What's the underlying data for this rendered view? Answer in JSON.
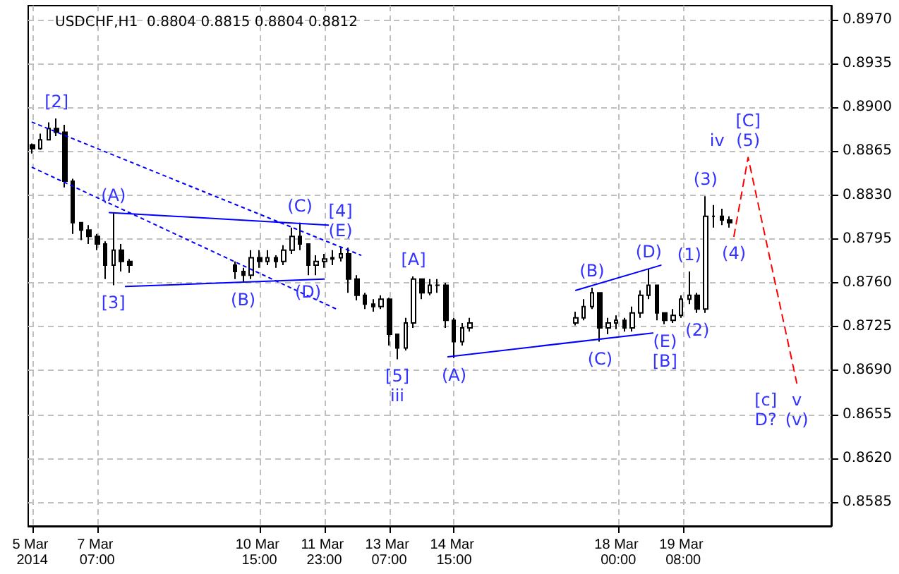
{
  "chart_data": {
    "type": "candlestick",
    "title": "USDCHF,H1  0.8804 0.8815 0.8804 0.8812",
    "color": "#000000",
    "grid": true,
    "x": [
      "2014-03-05T23:00",
      "2014-03-06T03:00",
      "2014-03-06T07:00",
      "2014-03-06T11:00",
      "2014-03-06T15:00",
      "2014-03-06T19:00",
      "2014-03-06T23:00",
      "2014-03-07T03:00",
      "2014-03-07T07:00",
      "2014-03-07T11:00",
      "2014-03-07T15:00",
      "2014-03-07T19:00",
      "2014-03-07T23:00",
      "2014-03-10T03:00",
      "2014-03-10T07:00",
      "2014-03-10T11:00",
      "2014-03-10T15:00",
      "2014-03-10T19:00",
      "2014-03-10T23:00",
      "2014-03-11T03:00",
      "2014-03-11T07:00",
      "2014-03-11T11:00",
      "2014-03-11T15:00",
      "2014-03-11T19:00",
      "2014-03-11T23:00",
      "2014-03-12T03:00",
      "2014-03-12T07:00",
      "2014-03-12T11:00",
      "2014-03-12T15:00",
      "2014-03-12T19:00",
      "2014-03-12T23:00",
      "2014-03-13T03:00",
      "2014-03-13T07:00",
      "2014-03-13T11:00",
      "2014-03-13T15:00",
      "2014-03-13T19:00",
      "2014-03-13T23:00",
      "2014-03-14T03:00",
      "2014-03-14T07:00",
      "2014-03-14T11:00",
      "2014-03-14T15:00",
      "2014-03-14T19:00",
      "2014-03-14T23:00",
      "2014-03-17T03:00",
      "2014-03-17T07:00",
      "2014-03-17T11:00",
      "2014-03-17T15:00",
      "2014-03-17T19:00",
      "2014-03-17T23:00",
      "2014-03-18T03:00",
      "2014-03-18T07:00",
      "2014-03-18T11:00",
      "2014-03-18T15:00",
      "2014-03-18T19:00",
      "2014-03-18T23:00",
      "2014-03-19T03:00",
      "2014-03-19T07:00",
      "2014-03-19T11:00",
      "2014-03-19T15:00",
      "2014-03-19T19:00",
      "2014-03-19T23:00",
      "2014-03-20T03:00",
      "2014-03-20T07:00"
    ],
    "ohlc": [
      [
        0.887,
        0.8871,
        0.8863,
        0.8867
      ],
      [
        0.8867,
        0.8879,
        0.8866,
        0.8874
      ],
      [
        0.8874,
        0.8888,
        0.8874,
        0.8883
      ],
      [
        0.8883,
        0.8891,
        0.8877,
        0.888
      ],
      [
        0.888,
        0.8886,
        0.8836,
        0.8841
      ],
      [
        0.8841,
        0.8843,
        0.8799,
        0.8808
      ],
      [
        0.8808,
        0.8808,
        0.8794,
        0.8802
      ],
      [
        0.8802,
        0.8806,
        0.8791,
        0.8797
      ],
      [
        0.8797,
        0.8799,
        0.8786,
        0.8791
      ],
      [
        0.8791,
        0.8793,
        0.8763,
        0.8774
      ],
      [
        0.8774,
        0.8816,
        0.8758,
        0.8786
      ],
      [
        0.8786,
        0.8791,
        0.8769,
        0.8777
      ],
      [
        0.8777,
        0.8779,
        0.8768,
        0.8774
      ],
      [
        0.8774,
        0.8777,
        0.8763,
        0.8769
      ],
      [
        0.8769,
        0.8772,
        0.876,
        0.8766
      ],
      [
        0.8766,
        0.8786,
        0.8763,
        0.878
      ],
      [
        0.878,
        0.8786,
        0.8772,
        0.8777
      ],
      [
        0.8777,
        0.8786,
        0.8774,
        0.878
      ],
      [
        0.878,
        0.8782,
        0.8772,
        0.8777
      ],
      [
        0.8777,
        0.879,
        0.8774,
        0.8786
      ],
      [
        0.8786,
        0.8804,
        0.8783,
        0.8797
      ],
      [
        0.8797,
        0.8808,
        0.8786,
        0.8791
      ],
      [
        0.8791,
        0.8791,
        0.8766,
        0.8774
      ],
      [
        0.8774,
        0.8782,
        0.8766,
        0.8777
      ],
      [
        0.8777,
        0.8783,
        0.8772,
        0.8779
      ],
      [
        0.8779,
        0.8786,
        0.8774,
        0.878
      ],
      [
        0.878,
        0.8788,
        0.8777,
        0.8783
      ],
      [
        0.8783,
        0.8788,
        0.8752,
        0.8763
      ],
      [
        0.8763,
        0.8766,
        0.8746,
        0.875
      ],
      [
        0.875,
        0.8752,
        0.8739,
        0.8743
      ],
      [
        0.8743,
        0.8747,
        0.8737,
        0.8741
      ],
      [
        0.8741,
        0.875,
        0.8739,
        0.8747
      ],
      [
        0.8747,
        0.8748,
        0.871,
        0.8719
      ],
      [
        0.8719,
        0.8719,
        0.8699,
        0.8708
      ],
      [
        0.8708,
        0.8732,
        0.8706,
        0.8728
      ],
      [
        0.8728,
        0.8765,
        0.8724,
        0.8763
      ],
      [
        0.8763,
        0.8763,
        0.8747,
        0.8752
      ],
      [
        0.8752,
        0.8763,
        0.875,
        0.8758
      ],
      [
        0.8758,
        0.8763,
        0.8752,
        0.8758
      ],
      [
        0.8758,
        0.876,
        0.8724,
        0.873
      ],
      [
        0.873,
        0.8732,
        0.87,
        0.8713
      ],
      [
        0.8713,
        0.8728,
        0.871,
        0.8724
      ],
      [
        0.8724,
        0.8732,
        0.8721,
        0.8728
      ],
      [
        0.8728,
        0.8737,
        0.8726,
        0.8732
      ],
      [
        0.8732,
        0.8747,
        0.873,
        0.8741
      ],
      [
        0.8741,
        0.8756,
        0.8739,
        0.8752
      ],
      [
        0.8752,
        0.8752,
        0.8713,
        0.8724
      ],
      [
        0.8724,
        0.8732,
        0.8719,
        0.8728
      ],
      [
        0.8728,
        0.8734,
        0.8723,
        0.873
      ],
      [
        0.873,
        0.8732,
        0.8721,
        0.8724
      ],
      [
        0.8724,
        0.8741,
        0.8721,
        0.8736
      ],
      [
        0.8736,
        0.8754,
        0.8732,
        0.875
      ],
      [
        0.875,
        0.8771,
        0.8747,
        0.8758
      ],
      [
        0.8758,
        0.8758,
        0.873,
        0.8736
      ],
      [
        0.8736,
        0.8736,
        0.8727,
        0.873
      ],
      [
        0.873,
        0.8739,
        0.8728,
        0.8734
      ],
      [
        0.8734,
        0.875,
        0.8732,
        0.8747
      ],
      [
        0.8747,
        0.8769,
        0.8743,
        0.875
      ],
      [
        0.875,
        0.8752,
        0.8736,
        0.8739
      ],
      [
        0.8739,
        0.8829,
        0.8736,
        0.8813
      ],
      [
        0.8813,
        0.8822,
        0.8804,
        0.8813
      ],
      [
        0.8813,
        0.8819,
        0.8806,
        0.881
      ],
      [
        0.881,
        0.8813,
        0.8804,
        0.8808
      ]
    ],
    "xlim": [
      "2014-03-05T21:00",
      "2014-03-22T09:00"
    ],
    "xticks": [
      {
        "value": "2014-03-05T23:00",
        "label": "5 Mar 2014"
      },
      {
        "value": "2014-03-07T07:00",
        "label": "7 Mar 07:00"
      },
      {
        "value": "2014-03-10T15:00",
        "label": "10 Mar 15:00"
      },
      {
        "value": "2014-03-11T23:00",
        "label": "11 Mar 23:00"
      },
      {
        "value": "2014-03-13T07:00",
        "label": "13 Mar 07:00"
      },
      {
        "value": "2014-03-14T15:00",
        "label": "14 Mar 15:00"
      },
      {
        "value": "2014-03-18T00:00",
        "label": "18 Mar 00:00"
      },
      {
        "value": "2014-03-19T08:00",
        "label": "19 Mar 08:00"
      }
    ],
    "ylim": [
      0.8566,
      0.8981
    ],
    "yticks": [
      0.8585,
      {
        "value": 0.862,
        "label": "0.8620"
      },
      0.8655,
      {
        "value": 0.869,
        "label": "0.8690"
      },
      0.8725,
      {
        "value": 0.876,
        "label": "0.8760"
      },
      0.8795,
      {
        "value": 0.883,
        "label": "0.8830"
      },
      0.8865,
      {
        "value": 0.89,
        "label": "0.8900"
      },
      0.8935,
      {
        "value": 0.897,
        "label": "0.8970"
      }
    ],
    "series": [
      {
        "type": "line",
        "color": "#0000ff",
        "line_style": "dotted",
        "marker": "none",
        "x": [
          "2014-03-05T23:00",
          "2014-03-12T17:00"
        ],
        "values": [
          0.8888,
          0.8782
        ]
      },
      {
        "type": "line",
        "color": "#0000ff",
        "line_style": "dotted",
        "marker": "none",
        "x": [
          "2014-03-05T23:00",
          "2014-03-12T05:00"
        ],
        "values": [
          0.8852,
          0.8739
        ]
      },
      {
        "type": "line",
        "color": "#0000ff",
        "line_style": "solid",
        "marker": "none",
        "x": [
          "2014-03-07T13:00",
          "2014-03-12T01:00"
        ],
        "values": [
          0.8816,
          0.8806
        ]
      },
      {
        "type": "line",
        "color": "#0000ff",
        "line_style": "solid",
        "marker": "none",
        "x": [
          "2014-03-07T21:00",
          "2014-03-11T23:00"
        ],
        "values": [
          0.8757,
          0.8763
        ]
      },
      {
        "type": "line",
        "color": "#0000ff",
        "line_style": "solid",
        "marker": "none",
        "x": [
          "2014-03-17T03:00",
          "2014-03-18T21:00"
        ],
        "values": [
          0.8754,
          0.8774
        ]
      },
      {
        "type": "line",
        "color": "#0000ff",
        "line_style": "solid",
        "marker": "none",
        "x": [
          "2014-03-14T12:00",
          "2014-03-18T17:00"
        ],
        "values": [
          0.8701,
          0.872
        ]
      },
      {
        "type": "line",
        "color": "#ff0000",
        "line_style": "dashed",
        "marker": "none",
        "x": [
          "2014-03-20T09:00",
          "2014-03-20T16:00",
          "2014-03-21T16:00"
        ],
        "values": [
          0.8797,
          0.886,
          0.868
        ]
      }
    ],
    "annotations": [
      {
        "text": "[2]",
        "x": "2014-03-06T11:00",
        "y": 0.8891
      },
      {
        "text": "(A)",
        "x": "2014-03-07T15:00",
        "y": 0.8816
      },
      {
        "text": "[3]",
        "x": "2014-03-07T15:00",
        "y": 0.8758
      },
      {
        "text": "(B)",
        "x": "2014-03-10T07:00",
        "y": 0.876
      },
      {
        "text": "(C)",
        "x": "2014-03-11T11:00",
        "y": 0.8808
      },
      {
        "text": "(D)",
        "x": "2014-03-11T15:00",
        "y": 0.8766
      },
      {
        "text": "(E)",
        "x": "2014-03-12T07:00",
        "y": 0.8788
      },
      {
        "text": "[4]",
        "x": "2014-03-12T07:00",
        "y": 0.8788
      },
      {
        "text": "[5]",
        "x": "2014-03-13T11:00",
        "y": 0.8699
      },
      {
        "text": "iii",
        "x": "2014-03-13T11:00",
        "y": 0.8699
      },
      {
        "text": "[A]",
        "x": "2014-03-13T19:00",
        "y": 0.8765
      },
      {
        "text": "(A)",
        "x": "2014-03-14T15:00",
        "y": 0.87
      },
      {
        "text": "(B)",
        "x": "2014-03-17T11:00",
        "y": 0.8756
      },
      {
        "text": "(C)",
        "x": "2014-03-17T15:00",
        "y": 0.8713
      },
      {
        "text": "(D)",
        "x": "2014-03-18T15:00",
        "y": 0.8771
      },
      {
        "text": "(E)",
        "x": "2014-03-18T23:00",
        "y": 0.8727
      },
      {
        "text": "[B]",
        "x": "2014-03-18T23:00",
        "y": 0.8727
      },
      {
        "text": "(1)",
        "x": "2014-03-19T11:00",
        "y": 0.8769
      },
      {
        "text": "(2)",
        "x": "2014-03-19T15:00",
        "y": 0.8736
      },
      {
        "text": "(3)",
        "x": "2014-03-19T19:00",
        "y": 0.8829
      },
      {
        "text": "(4)",
        "x": "2014-03-20T09:00",
        "y": 0.8797
      },
      {
        "text": "(5)",
        "x": "2014-03-20T16:00",
        "y": 0.886
      },
      {
        "text": "[C]",
        "x": "2014-03-20T16:00",
        "y": 0.886
      },
      {
        "text": "iv",
        "x": "2014-03-20T16:00",
        "y": 0.886
      },
      {
        "text": "v",
        "x": "2014-03-21T16:00",
        "y": 0.868
      },
      {
        "text": "(v)",
        "x": "2014-03-21T16:00",
        "y": 0.868
      },
      {
        "text": "[c]",
        "x": "2014-03-21T16:00",
        "y": 0.868
      },
      {
        "text": "D?",
        "x": "2014-03-21T16:00",
        "y": 0.868
      }
    ]
  }
}
